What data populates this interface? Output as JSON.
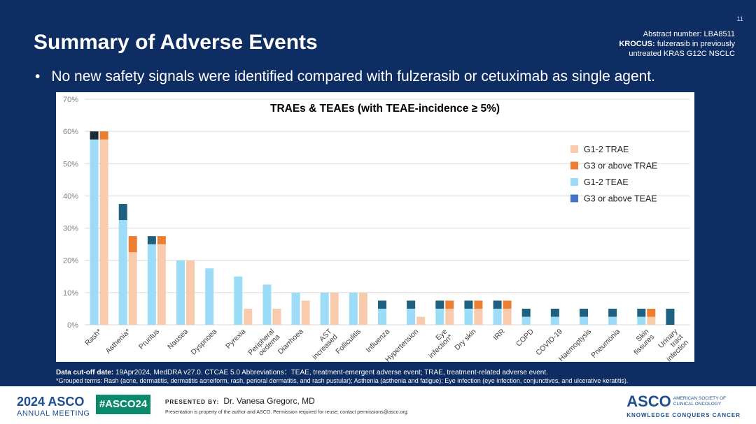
{
  "slide": {
    "page_number": "11",
    "title": "Summary of Adverse Events",
    "abstract_line1": "Abstract number: LBA8511",
    "abstract_bold": "KROCUS:",
    "abstract_line2": " fulzerasib in previously",
    "abstract_line3": "untreated KRAS G12C NSCLC",
    "bullet_symbol": "•",
    "bullet": "No new safety signals were identified compared with fulzerasib or cetuximab as single agent.",
    "footnote_bold": "Data cut-off date:",
    "footnote_rest": " 19Apr2024, MedDRA v27.0. CTCAE 5.0     Abbreviations：TEAE,  treatment-emergent adverse event; TRAE, treatment-related adverse event.",
    "footnote2": "*Grouped terms: Rash (acne, dermatitis, dermatitis acneiform, rash, perioral dermatitis, and rash pustular); Asthenia (asthenia and fatigue); Eye infection (eye infection, conjunctives, and ulcerative keratitis)."
  },
  "footer": {
    "asco_year": "2024 ASCO",
    "meeting": "ANNUAL MEETING",
    "hashtag": "#ASCO24",
    "presented_by": "PRESENTED BY:",
    "presenter": "Dr. Vanesa Gregorc, MD",
    "disclaimer": "Presentation is property of the author and ASCO. Permission required for reuse; contact permissions@asco.org.",
    "asco_logo": "ASCO",
    "society_line1": "AMERICAN SOCIETY OF",
    "society_line2": "CLINICAL ONCOLOGY",
    "tagline": "KNOWLEDGE CONQUERS CANCER"
  },
  "chart_data": {
    "type": "bar",
    "title": "TRAEs & TEAEs (with TEAE-incidence ≥ 5%)",
    "ylim": [
      0,
      70
    ],
    "yticks": [
      0,
      10,
      20,
      30,
      40,
      50,
      60,
      70
    ],
    "ytick_labels": [
      "0%",
      "10%",
      "20%",
      "30%",
      "40%",
      "50%",
      "60%",
      "70%"
    ],
    "legend_position": "right",
    "categories": [
      [
        "Rash*"
      ],
      [
        "Asthenia*"
      ],
      [
        "Pruritus"
      ],
      [
        "Nausea"
      ],
      [
        "Dyspnoea"
      ],
      [
        "Pyrexia"
      ],
      [
        "Peripheral",
        "oedema"
      ],
      [
        "Diarrhoea"
      ],
      [
        "AST",
        "increased"
      ],
      [
        "Folliculitis"
      ],
      [
        "Influenza"
      ],
      [
        "Hypertension"
      ],
      [
        "Eye",
        "infection*"
      ],
      [
        "Dry skin"
      ],
      [
        "IRR"
      ],
      [
        "COPD"
      ],
      [
        "COVID-19"
      ],
      [
        "Haemoptysis"
      ],
      [
        "Pneumonia"
      ],
      [
        "Skin",
        "fissures"
      ],
      [
        "Urinary",
        "tract",
        "infection"
      ]
    ],
    "series": [
      {
        "name": "G1-2 TRAE",
        "color": "#f8cbad",
        "values": [
          57.5,
          22.5,
          25,
          20,
          0,
          5,
          5,
          7.5,
          10,
          10,
          0,
          2.5,
          5,
          5,
          5,
          0,
          0,
          0,
          0,
          2.5,
          0
        ]
      },
      {
        "name": "G3 or above TRAE",
        "color": "#ed7d31",
        "values": [
          2.5,
          5,
          2.5,
          0,
          0,
          0,
          0,
          0,
          0,
          0,
          0,
          0,
          2.5,
          2.5,
          2.5,
          0,
          0,
          0,
          0,
          2.5,
          0
        ]
      },
      {
        "name": "G1-2 TEAE",
        "color": "#9ddcf7",
        "values": [
          57.5,
          32.5,
          25,
          20,
          17.5,
          15,
          12.5,
          10,
          10,
          10,
          5,
          5,
          5,
          5,
          5,
          2.5,
          2.5,
          2.5,
          2.5,
          2.5,
          0
        ]
      },
      {
        "name": "G3 or above TEAE",
        "color": "#1f5f7f",
        "legend_color": "#4472c4",
        "values": [
          2.5,
          5,
          2.5,
          0,
          0,
          0,
          0,
          0,
          0,
          0,
          2.5,
          2.5,
          2.5,
          2.5,
          2.5,
          2.5,
          2.5,
          2.5,
          2.5,
          2.5,
          5
        ]
      }
    ],
    "rash_teae_g3_color": "#1a2a3a"
  }
}
